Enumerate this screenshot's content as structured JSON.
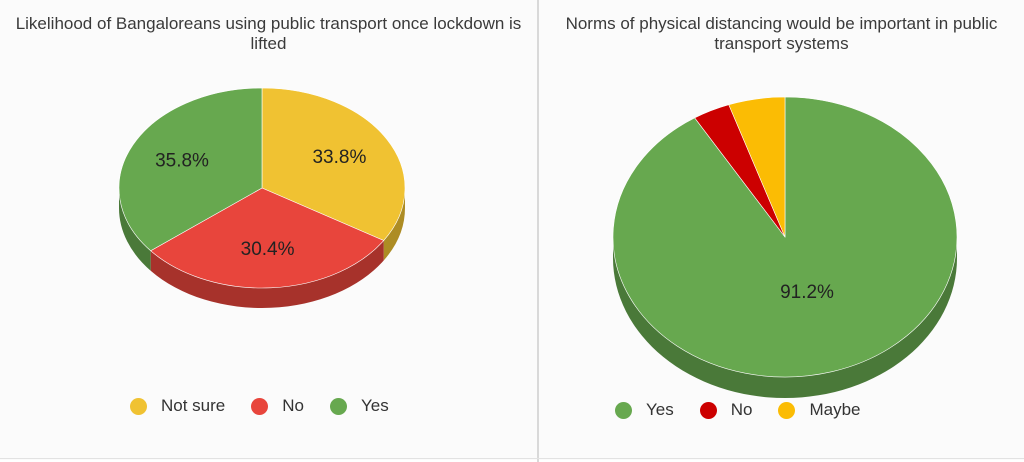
{
  "chart_data": [
    {
      "type": "pie",
      "title": "Likelihood of Bangaloreans using public transport once lockdown is lifted",
      "categories": [
        "Not sure",
        "No",
        "Yes"
      ],
      "values": [
        33.8,
        30.4,
        35.8
      ],
      "labels": [
        "33.8%",
        "30.4%",
        "35.8%"
      ],
      "colors": [
        "#f0c232",
        "#e8453c",
        "#67a84f"
      ],
      "legend_position": "bottom",
      "style": "3d"
    },
    {
      "type": "pie",
      "title": "Norms of physical distancing would be important in public transport systems",
      "categories": [
        "Yes",
        "No",
        "Maybe"
      ],
      "values": [
        91.2,
        3.5,
        5.3
      ],
      "labels": [
        "91.2%",
        "",
        ""
      ],
      "colors": [
        "#67a84f",
        "#cc0000",
        "#fbbc04"
      ],
      "legend_position": "bottom",
      "style": "3d"
    }
  ]
}
